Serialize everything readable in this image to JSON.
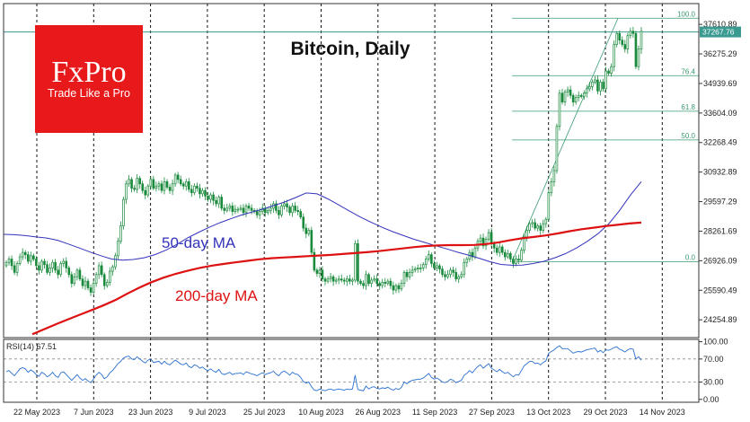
{
  "chart_data": [
    {
      "type": "candlestick",
      "title": "Bitcoin, Daily",
      "brand": {
        "name": "FxPro",
        "tagline": "Trade Like a Pro",
        "color": "#e8191b"
      },
      "x_labels": [
        "22 May 2023",
        "7 Jun 2023",
        "23 Jun 2023",
        "9 Jul 2023",
        "25 Jul 2023",
        "10 Aug 2023",
        "26 Aug 2023",
        "11 Sep 2023",
        "27 Sep 2023",
        "13 Oct 2023",
        "29 Oct 2023",
        "14 Nov 2023"
      ],
      "y_ticks": [
        37610.89,
        36275.29,
        34939.69,
        33604.09,
        32268.49,
        30932.89,
        29597.29,
        28261.69,
        26926.09,
        25590.49,
        24254.89
      ],
      "ylim": [
        23450,
        38550
      ],
      "current_price": 37267.76,
      "closes": [
        26850,
        27000,
        26700,
        26400,
        26800,
        27100,
        27300,
        27200,
        26900,
        27150,
        27000,
        26700,
        26500,
        26900,
        26750,
        26400,
        26600,
        26850,
        26500,
        26300,
        26800,
        26900,
        26600,
        26300,
        25900,
        26200,
        26500,
        26100,
        25800,
        26000,
        25700,
        25500,
        25900,
        26300,
        26700,
        26300,
        25800,
        25950,
        26450,
        26650,
        27150,
        27800,
        28500,
        29700,
        30400,
        30600,
        30200,
        30150,
        30650,
        30400,
        30100,
        29900,
        30300,
        30600,
        30200,
        30300,
        30400,
        30100,
        30500,
        30250,
        30100,
        30400,
        30800,
        30600,
        30400,
        30300,
        30500,
        30150,
        30000,
        30300,
        30200,
        29950,
        30100,
        29850,
        29700,
        29900,
        29650,
        29500,
        29800,
        29300,
        29200,
        29300,
        29400,
        29150,
        29250,
        29250,
        29300,
        29100,
        29400,
        29300,
        29200,
        29150,
        29000,
        29150,
        29300,
        29100,
        29200,
        29300,
        29500,
        29200,
        29000,
        29400,
        29500,
        29350,
        29100,
        29400,
        29200,
        29150,
        28900,
        28400,
        28150,
        28300,
        27300,
        26500,
        26350,
        26500,
        26100,
        26000,
        26100,
        26200,
        26000,
        26050,
        26100,
        26050,
        26000,
        26100,
        26000,
        26050,
        27700,
        26000,
        25900,
        25800,
        26300,
        25900,
        26050,
        26100,
        25900,
        25800,
        25950,
        25900,
        26000,
        25800,
        25600,
        25800,
        25650,
        25900,
        26400,
        26200,
        26400,
        26500,
        26550,
        26600,
        26600,
        26750,
        27000,
        27200,
        26800,
        26600,
        26700,
        26550,
        26300,
        26200,
        26300,
        26500,
        26400,
        26100,
        26200,
        26300,
        26850,
        27000,
        27300,
        27100,
        27500,
        27800,
        27950,
        27600,
        27900,
        28200,
        27700,
        27500,
        27300,
        27550,
        27300,
        27100,
        27250,
        27000,
        26800,
        27000,
        26950,
        27400,
        28000,
        28300,
        28600,
        28650,
        28400,
        28500,
        28300,
        28600,
        28800,
        30000,
        30500,
        31000,
        33000,
        34500,
        34100,
        34550,
        34650,
        34400,
        34100,
        34300,
        34400,
        34350,
        34500,
        34700,
        34800,
        35000,
        35100,
        34600,
        35000,
        34700,
        35500,
        35400,
        35700,
        36700,
        37200,
        36900,
        36700,
        36500,
        37100,
        37300,
        37200,
        35700,
        36500,
        37300
      ],
      "ma50": {
        "label": "50-day MA",
        "color": "#3333bb",
        "values": [
          28120,
          28100,
          28060,
          28000,
          27950,
          27850,
          27680,
          27500,
          27320,
          27150,
          27000,
          26950,
          26980,
          27060,
          27200,
          27400,
          27650,
          27950,
          28200,
          28430,
          28640,
          28820,
          28990,
          29130,
          29260,
          29420,
          29580,
          29780,
          29990,
          29950,
          29720,
          29450,
          29170,
          28900,
          28660,
          28440,
          28240,
          28060,
          27890,
          27750,
          27600,
          27460,
          27310,
          27180,
          27040,
          26880,
          26760,
          26720,
          26730,
          26800,
          26900,
          27060,
          27250,
          27500,
          27800,
          28150,
          28600,
          29200,
          29900,
          30500
        ]
      },
      "ma200": {
        "label": "200-day MA",
        "color": "#dd1111",
        "values": [
          23600,
          23830,
          24060,
          24280,
          24490,
          24700,
          24920,
          25160,
          25450,
          25720,
          25960,
          26160,
          26330,
          26470,
          26600,
          26700,
          26780,
          26850,
          26920,
          26990,
          27040,
          27070,
          27100,
          27130,
          27160,
          27190,
          27230,
          27270,
          27310,
          27360,
          27420,
          27480,
          27540,
          27590,
          27620,
          27630,
          27630,
          27640,
          27680,
          27750,
          27850,
          27940,
          28000,
          28070,
          28160,
          28260,
          28350,
          28420,
          28490,
          28550,
          28610,
          28650
        ]
      },
      "fibonacci": {
        "levels": [
          "100.0",
          "76.4",
          "61.8",
          "50.0",
          "0.0"
        ],
        "low": 26880,
        "high": 37890
      }
    },
    {
      "type": "line",
      "label": "RSI(14) 67.51",
      "y_ticks": [
        "100.00",
        "70.00",
        "30.00",
        "0.00"
      ],
      "ylim": [
        -5,
        104
      ],
      "levels": [
        70,
        30
      ],
      "values": [
        48,
        50,
        45,
        41,
        47,
        53,
        55,
        53,
        47,
        51,
        48,
        43,
        40,
        47,
        44,
        39,
        42,
        47,
        41,
        38,
        46,
        48,
        43,
        38,
        33,
        38,
        43,
        37,
        33,
        36,
        32,
        29,
        35,
        42,
        47,
        43,
        36,
        39,
        46,
        50,
        56,
        62,
        66,
        72,
        74,
        75,
        70,
        69,
        74,
        70,
        66,
        63,
        68,
        70,
        64,
        65,
        66,
        61,
        66,
        62,
        60,
        64,
        68,
        65,
        61,
        60,
        63,
        57,
        55,
        60,
        58,
        54,
        56,
        52,
        50,
        53,
        49,
        47,
        52,
        45,
        43,
        45,
        47,
        43,
        45,
        45,
        46,
        43,
        48,
        46,
        44,
        43,
        41,
        44,
        46,
        43,
        45,
        46,
        49,
        44,
        41,
        47,
        49,
        46,
        42,
        47,
        44,
        43,
        38,
        31,
        28,
        30,
        22,
        16,
        15,
        18,
        16,
        15,
        17,
        18,
        16,
        17,
        18,
        17,
        16,
        18,
        17,
        18,
        42,
        17,
        16,
        15,
        23,
        18,
        21,
        22,
        19,
        18,
        20,
        19,
        21,
        18,
        16,
        19,
        17,
        21,
        30,
        27,
        31,
        33,
        34,
        35,
        35,
        37,
        41,
        45,
        38,
        35,
        37,
        34,
        30,
        29,
        31,
        35,
        33,
        29,
        31,
        33,
        42,
        45,
        50,
        46,
        52,
        57,
        60,
        54,
        58,
        62,
        54,
        51,
        48,
        52,
        48,
        45,
        47,
        43,
        39,
        43,
        42,
        50,
        58,
        62,
        66,
        66,
        62,
        63,
        60,
        64,
        67,
        80,
        83,
        86,
        90,
        93,
        88,
        88,
        88,
        84,
        80,
        82,
        83,
        82,
        84,
        86,
        87,
        88,
        89,
        82,
        85,
        81,
        86,
        85,
        87,
        90,
        91,
        87,
        85,
        82,
        86,
        88,
        87,
        70,
        74,
        68
      ]
    }
  ]
}
